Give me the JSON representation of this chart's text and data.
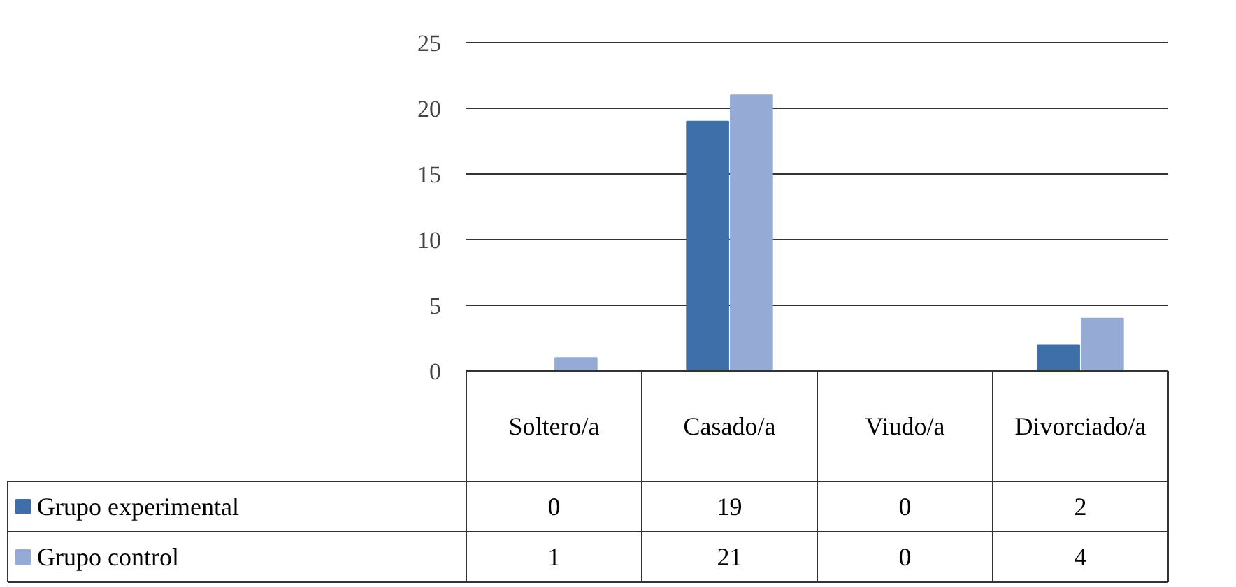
{
  "chart_data": {
    "type": "bar",
    "categories": [
      "Soltero/a",
      "Casado/a",
      "Viudo/a",
      "Divorciado/a"
    ],
    "series": [
      {
        "name": "Grupo experimental",
        "color": "#3f6fa8",
        "values": [
          0,
          19,
          0,
          2
        ]
      },
      {
        "name": "Grupo control",
        "color": "#95abd6",
        "values": [
          1,
          21,
          0,
          4
        ]
      }
    ],
    "ylim": [
      0,
      25
    ],
    "yticks": [
      0,
      5,
      10,
      15,
      20,
      25
    ],
    "grid": "y",
    "legend": "bottom",
    "data_labels": true
  }
}
